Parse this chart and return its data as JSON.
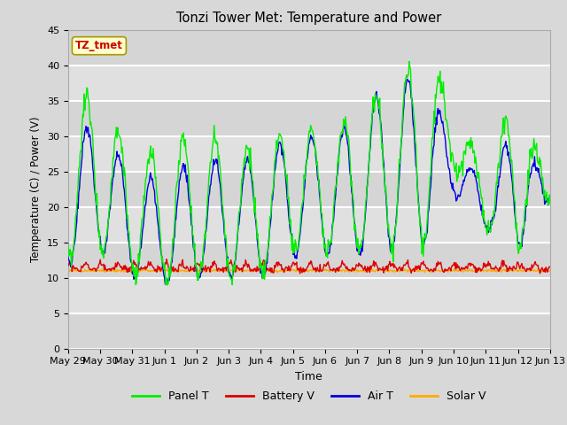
{
  "title": "Tonzi Tower Met: Temperature and Power",
  "xlabel": "Time",
  "ylabel": "Temperature (C) / Power (V)",
  "ylim": [
    0,
    45
  ],
  "yticks": [
    0,
    5,
    10,
    15,
    20,
    25,
    30,
    35,
    40,
    45
  ],
  "annotation_text": "TZ_tmet",
  "annotation_color": "#cc0000",
  "annotation_bg": "#ffffcc",
  "fig_bg_color": "#d8d8d8",
  "plot_bg": "#e0e0e0",
  "grid_color": "#f0f0f0",
  "line_colors": {
    "panel_t": "#00ee00",
    "battery_v": "#dd0000",
    "air_t": "#0000dd",
    "solar_v": "#ffaa00"
  },
  "legend_labels": [
    "Panel T",
    "Battery V",
    "Air T",
    "Solar V"
  ],
  "x_tick_labels": [
    "May 29",
    "May 30",
    "May 31",
    "Jun 1",
    "Jun 2",
    "Jun 3",
    "Jun 4",
    "Jun 5",
    "Jun 6",
    "Jun 7",
    "Jun 8",
    "Jun 9",
    "Jun 10",
    "Jun 11",
    "Jun 12",
    "Jun 13"
  ]
}
